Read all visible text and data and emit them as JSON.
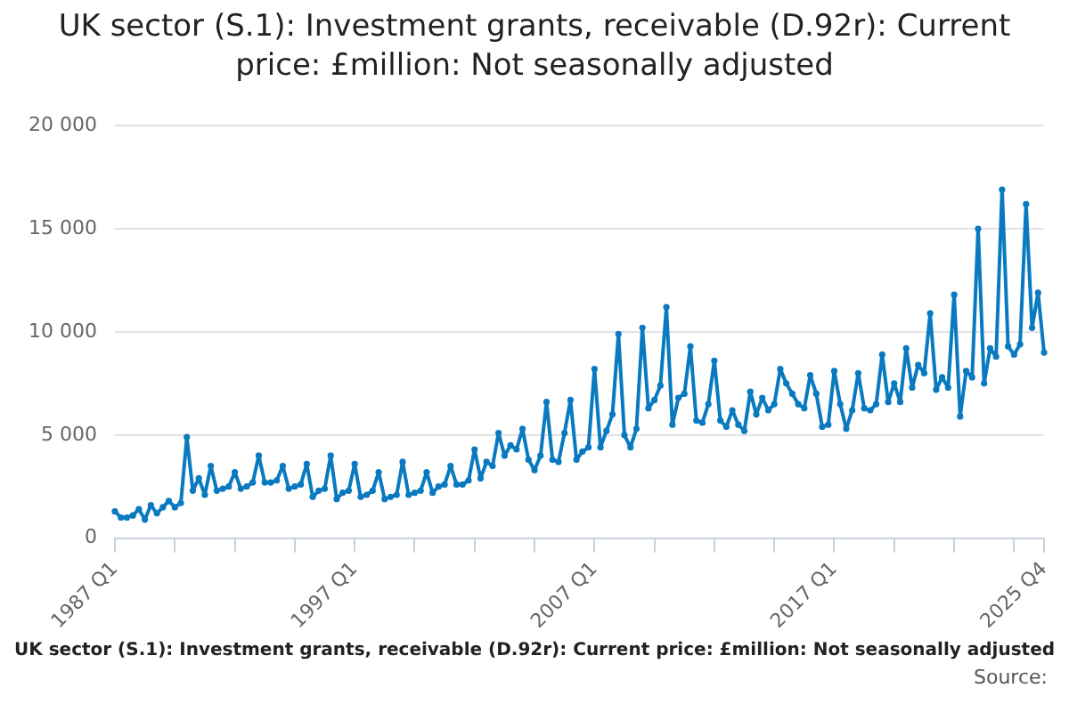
{
  "chart_data": {
    "type": "line",
    "title": "UK sector (S.1): Investment grants, receivable (D.92r): Current price: £million: Not seasonally adjusted",
    "xlabel": "UK sector (S.1): Investment grants, receivable (D.92r): Current price: £million: Not seasonally adjusted",
    "annotations": [
      "Source:"
    ],
    "categories": [
      "1987 Q1",
      null,
      null,
      null,
      null,
      null,
      null,
      null,
      null,
      null,
      null,
      null,
      null,
      null,
      null,
      null,
      null,
      null,
      null,
      null,
      null,
      null,
      null,
      null,
      null,
      null,
      null,
      null,
      null,
      null,
      null,
      null,
      null,
      null,
      null,
      null,
      null,
      null,
      null,
      null,
      "1997 Q1",
      null,
      null,
      null,
      null,
      null,
      null,
      null,
      null,
      null,
      null,
      null,
      null,
      null,
      null,
      null,
      null,
      null,
      null,
      null,
      null,
      null,
      null,
      null,
      null,
      null,
      null,
      null,
      null,
      null,
      null,
      null,
      null,
      null,
      null,
      null,
      null,
      null,
      null,
      null,
      "2007 Q1",
      null,
      null,
      null,
      null,
      null,
      null,
      null,
      null,
      null,
      null,
      null,
      null,
      null,
      null,
      null,
      null,
      null,
      null,
      null,
      null,
      null,
      null,
      null,
      null,
      null,
      null,
      null,
      null,
      null,
      null,
      null,
      null,
      null,
      null,
      null,
      null,
      null,
      null,
      null,
      "2017 Q1",
      null,
      null,
      null,
      null,
      null,
      null,
      null,
      null,
      null,
      null,
      null,
      null,
      null,
      null,
      null,
      null,
      null,
      null,
      null,
      null,
      null,
      null,
      null,
      null,
      null,
      null,
      null,
      null,
      null,
      null,
      null,
      null,
      null,
      null,
      "2025 Q4"
    ],
    "series": [
      {
        "color": "#0a7ac0",
        "values": [
          1300,
          1000,
          1000,
          1100,
          1400,
          900,
          1600,
          1200,
          1500,
          1800,
          1500,
          1700,
          4900,
          2300,
          2900,
          2100,
          3500,
          2300,
          2400,
          2500,
          3200,
          2400,
          2500,
          2700,
          4000,
          2700,
          2700,
          2800,
          3500,
          2400,
          2500,
          2600,
          3600,
          2000,
          2300,
          2400,
          4000,
          1900,
          2200,
          2300,
          3600,
          2000,
          2100,
          2300,
          3200,
          1900,
          2000,
          2100,
          3700,
          2100,
          2200,
          2300,
          3200,
          2200,
          2500,
          2600,
          3500,
          2600,
          2600,
          2800,
          4300,
          2900,
          3700,
          3500,
          5100,
          4000,
          4500,
          4300,
          5300,
          3800,
          3300,
          4000,
          6600,
          3800,
          3700,
          5100,
          6700,
          3800,
          4200,
          4400,
          8200,
          4400,
          5200,
          6000,
          9900,
          5000,
          4400,
          5300,
          10200,
          6300,
          6700,
          7400,
          11200,
          5500,
          6800,
          7000,
          9300,
          5700,
          5600,
          6500,
          8600,
          5700,
          5400,
          6200,
          5500,
          5200,
          7100,
          6000,
          6800,
          6200,
          6500,
          8200,
          7500,
          7000,
          6500,
          6300,
          7900,
          7000,
          5400,
          5500,
          8100,
          6500,
          5300,
          6200,
          8000,
          6300,
          6200,
          6500,
          8900,
          6600,
          7500,
          6600,
          9200,
          7300,
          8400,
          8000,
          10900,
          7200,
          7800,
          7300,
          11800,
          5900,
          8100,
          7800,
          15000,
          7500,
          9200,
          8800,
          16900,
          9300,
          8900,
          9400,
          16200,
          10200,
          11900,
          9000
        ]
      }
    ],
    "ylim": [
      0,
      20000
    ],
    "yticks": [
      0,
      {
        "value": 5000,
        "label": "5 000"
      },
      {
        "value": 10000,
        "label": "10 000"
      },
      {
        "value": 15000,
        "label": "15 000"
      },
      {
        "value": 20000,
        "label": "20 000"
      }
    ],
    "grid": "y",
    "marker": "circle",
    "line_style": "solid",
    "legend": false
  }
}
